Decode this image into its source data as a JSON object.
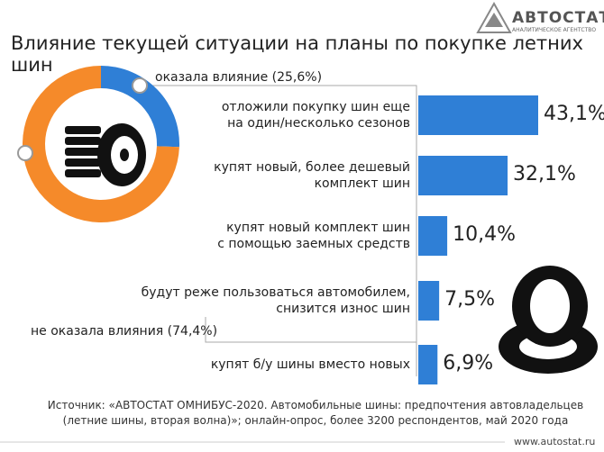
{
  "header": {
    "brand": "АВТОСТАТ",
    "tagline": "АНАЛИТИЧЕСКОЕ АГЕНТСТВО"
  },
  "chart_data": [
    {
      "type": "pie",
      "title": "Влияние текущей ситуации на планы по покупке летних шин",
      "values": [
        25.6,
        74.4
      ],
      "value_labels": [
        "оказала влияние (25,6%)",
        "не оказала влияния (74,4%)"
      ],
      "colors": [
        "#2f7fd6",
        "#f58a2a"
      ]
    },
    {
      "type": "bar",
      "categories": [
        "отложили покупку шин еще\nна один/несколько сезонов",
        "купят новый, более дешевый\nкомплект шин",
        "купят новый комплект шин\nс помощью заемных средств",
        "будут реже пользоваться автомобилем,\nснизится износ шин",
        "купят б/у шины вместо новых"
      ],
      "values": [
        43.1,
        32.1,
        10.4,
        7.5,
        6.9
      ],
      "value_labels": [
        "43,1%",
        "32,1%",
        "10,4%",
        "7,5%",
        "6,9%"
      ],
      "color": "#2f7fd6"
    }
  ],
  "footer": {
    "source": "Источник: «АВТОСТАТ ОМНИБУС-2020. Автомобильные шины: предпочтения автовладельцев\n(летние шины, вторая волна)»; онлайн-опрос, более 3200 респондентов, май 2020 года",
    "url": "www.autostat.ru"
  }
}
